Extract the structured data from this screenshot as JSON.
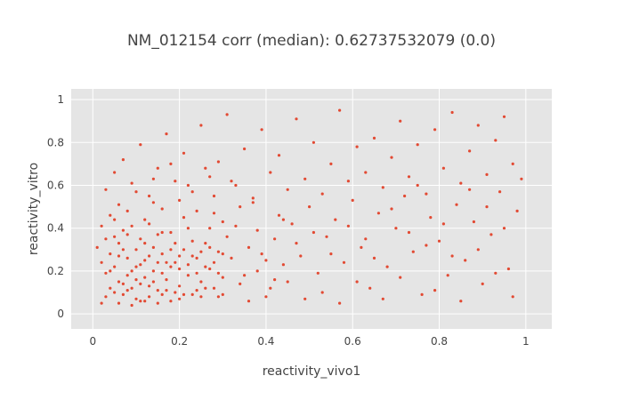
{
  "chart_data": {
    "type": "scatter",
    "title": "NM_012154 corr (median): 0.62737532079 (0.0)",
    "xlabel": "reactivity_vivo1",
    "ylabel": "reactivity_vitro",
    "xlim": [
      -0.05,
      1.06
    ],
    "ylim": [
      -0.07,
      1.05
    ],
    "x_ticks": [
      "0",
      "0.2",
      "0.4",
      "0.6",
      "0.8",
      "1"
    ],
    "y_ticks": [
      "0",
      "0.2",
      "0.4",
      "0.6",
      "0.8",
      "1"
    ],
    "grid": true,
    "legend": "none",
    "marker_color": "#e24a33",
    "plot_background": "#e5e5e5",
    "series": [
      {
        "points": [
          [
            0.02,
            0.05
          ],
          [
            0.03,
            0.08
          ],
          [
            0.04,
            0.12
          ],
          [
            0.05,
            0.1
          ],
          [
            0.06,
            0.15
          ],
          [
            0.07,
            0.09
          ],
          [
            0.08,
            0.18
          ],
          [
            0.09,
            0.12
          ],
          [
            0.1,
            0.22
          ],
          [
            0.11,
            0.14
          ],
          [
            0.12,
            0.25
          ],
          [
            0.13,
            0.08
          ],
          [
            0.14,
            0.2
          ],
          [
            0.15,
            0.11
          ],
          [
            0.16,
            0.28
          ],
          [
            0.17,
            0.16
          ],
          [
            0.18,
            0.06
          ],
          [
            0.19,
            0.24
          ],
          [
            0.2,
            0.13
          ],
          [
            0.21,
            0.3
          ],
          [
            0.22,
            0.18
          ],
          [
            0.23,
            0.09
          ],
          [
            0.24,
            0.26
          ],
          [
            0.25,
            0.15
          ],
          [
            0.26,
            0.33
          ],
          [
            0.27,
            0.21
          ],
          [
            0.28,
            0.12
          ],
          [
            0.29,
            0.29
          ],
          [
            0.3,
            0.17
          ],
          [
            0.31,
            0.36
          ],
          [
            0.05,
            0.22
          ],
          [
            0.07,
            0.3
          ],
          [
            0.09,
            0.04
          ],
          [
            0.11,
            0.35
          ],
          [
            0.13,
            0.42
          ],
          [
            0.15,
            0.05
          ],
          [
            0.04,
            0.28
          ],
          [
            0.06,
            0.33
          ],
          [
            0.08,
            0.26
          ],
          [
            0.1,
            0.07
          ],
          [
            0.12,
            0.17
          ],
          [
            0.14,
            0.31
          ],
          [
            0.16,
            0.09
          ],
          [
            0.18,
            0.38
          ],
          [
            0.2,
            0.21
          ],
          [
            0.03,
            0.19
          ],
          [
            0.05,
            0.36
          ],
          [
            0.07,
            0.14
          ],
          [
            0.09,
            0.41
          ],
          [
            0.11,
            0.23
          ],
          [
            0.13,
            0.13
          ],
          [
            0.15,
            0.37
          ],
          [
            0.17,
            0.24
          ],
          [
            0.19,
            0.1
          ],
          [
            0.21,
            0.45
          ],
          [
            0.23,
            0.27
          ],
          [
            0.25,
            0.08
          ],
          [
            0.27,
            0.4
          ],
          [
            0.29,
            0.19
          ],
          [
            0.02,
            0.24
          ],
          [
            0.06,
            0.05
          ],
          [
            0.08,
            0.48
          ],
          [
            0.1,
            0.3
          ],
          [
            0.12,
            0.06
          ],
          [
            0.14,
            0.52
          ],
          [
            0.16,
            0.19
          ],
          [
            0.18,
            0.3
          ],
          [
            0.2,
            0.07
          ],
          [
            0.22,
            0.4
          ],
          [
            0.24,
            0.11
          ],
          [
            0.26,
            0.22
          ],
          [
            0.28,
            0.47
          ],
          [
            0.3,
            0.09
          ],
          [
            0.32,
            0.26
          ],
          [
            0.34,
            0.14
          ],
          [
            0.36,
            0.31
          ],
          [
            0.38,
            0.2
          ],
          [
            0.4,
            0.08
          ],
          [
            0.42,
            0.35
          ],
          [
            0.44,
            0.23
          ],
          [
            0.33,
            0.41
          ],
          [
            0.35,
            0.18
          ],
          [
            0.37,
            0.52
          ],
          [
            0.39,
            0.28
          ],
          [
            0.41,
            0.12
          ],
          [
            0.43,
            0.46
          ],
          [
            0.45,
            0.15
          ],
          [
            0.47,
            0.33
          ],
          [
            0.49,
            0.07
          ],
          [
            0.51,
            0.38
          ],
          [
            0.03,
            0.58
          ],
          [
            0.05,
            0.66
          ],
          [
            0.07,
            0.72
          ],
          [
            0.09,
            0.61
          ],
          [
            0.11,
            0.79
          ],
          [
            0.13,
            0.55
          ],
          [
            0.15,
            0.68
          ],
          [
            0.17,
            0.84
          ],
          [
            0.19,
            0.62
          ],
          [
            0.21,
            0.75
          ],
          [
            0.23,
            0.57
          ],
          [
            0.25,
            0.88
          ],
          [
            0.27,
            0.64
          ],
          [
            0.29,
            0.71
          ],
          [
            0.31,
            0.93
          ],
          [
            0.33,
            0.6
          ],
          [
            0.35,
            0.77
          ],
          [
            0.37,
            0.54
          ],
          [
            0.39,
            0.86
          ],
          [
            0.41,
            0.66
          ],
          [
            0.43,
            0.74
          ],
          [
            0.45,
            0.58
          ],
          [
            0.47,
            0.91
          ],
          [
            0.49,
            0.63
          ],
          [
            0.51,
            0.8
          ],
          [
            0.53,
            0.56
          ],
          [
            0.55,
            0.7
          ],
          [
            0.57,
            0.95
          ],
          [
            0.59,
            0.62
          ],
          [
            0.61,
            0.78
          ],
          [
            0.46,
            0.42
          ],
          [
            0.48,
            0.27
          ],
          [
            0.5,
            0.5
          ],
          [
            0.52,
            0.19
          ],
          [
            0.54,
            0.36
          ],
          [
            0.56,
            0.44
          ],
          [
            0.58,
            0.24
          ],
          [
            0.6,
            0.53
          ],
          [
            0.62,
            0.31
          ],
          [
            0.64,
            0.12
          ],
          [
            0.66,
            0.47
          ],
          [
            0.68,
            0.22
          ],
          [
            0.7,
            0.4
          ],
          [
            0.72,
            0.55
          ],
          [
            0.74,
            0.29
          ],
          [
            0.76,
            0.09
          ],
          [
            0.78,
            0.45
          ],
          [
            0.8,
            0.34
          ],
          [
            0.82,
            0.18
          ],
          [
            0.84,
            0.51
          ],
          [
            0.86,
            0.25
          ],
          [
            0.88,
            0.43
          ],
          [
            0.9,
            0.14
          ],
          [
            0.92,
            0.37
          ],
          [
            0.94,
            0.57
          ],
          [
            0.96,
            0.21
          ],
          [
            0.98,
            0.48
          ],
          [
            0.63,
            0.66
          ],
          [
            0.65,
            0.82
          ],
          [
            0.67,
            0.59
          ],
          [
            0.69,
            0.73
          ],
          [
            0.71,
            0.9
          ],
          [
            0.73,
            0.64
          ],
          [
            0.75,
            0.79
          ],
          [
            0.77,
            0.56
          ],
          [
            0.79,
            0.86
          ],
          [
            0.81,
            0.68
          ],
          [
            0.83,
            0.94
          ],
          [
            0.85,
            0.61
          ],
          [
            0.87,
            0.76
          ],
          [
            0.89,
            0.88
          ],
          [
            0.91,
            0.65
          ],
          [
            0.93,
            0.81
          ],
          [
            0.95,
            0.92
          ],
          [
            0.97,
            0.7
          ],
          [
            0.36,
            0.06
          ],
          [
            0.38,
            0.39
          ],
          [
            0.4,
            0.25
          ],
          [
            0.42,
            0.16
          ],
          [
            0.44,
            0.44
          ],
          [
            0.53,
            0.1
          ],
          [
            0.55,
            0.28
          ],
          [
            0.57,
            0.05
          ],
          [
            0.59,
            0.41
          ],
          [
            0.61,
            0.15
          ],
          [
            0.63,
            0.35
          ],
          [
            0.65,
            0.26
          ],
          [
            0.67,
            0.07
          ],
          [
            0.69,
            0.49
          ],
          [
            0.71,
            0.17
          ],
          [
            0.73,
            0.38
          ],
          [
            0.75,
            0.6
          ],
          [
            0.77,
            0.32
          ],
          [
            0.79,
            0.11
          ],
          [
            0.81,
            0.42
          ],
          [
            0.83,
            0.27
          ],
          [
            0.85,
            0.06
          ],
          [
            0.87,
            0.58
          ],
          [
            0.89,
            0.3
          ],
          [
            0.91,
            0.5
          ],
          [
            0.93,
            0.19
          ],
          [
            0.95,
            0.4
          ],
          [
            0.97,
            0.08
          ],
          [
            0.99,
            0.63
          ],
          [
            0.04,
            0.46
          ],
          [
            0.06,
            0.51
          ],
          [
            0.08,
            0.37
          ],
          [
            0.1,
            0.57
          ],
          [
            0.12,
            0.44
          ],
          [
            0.14,
            0.63
          ],
          [
            0.16,
            0.49
          ],
          [
            0.18,
            0.7
          ],
          [
            0.2,
            0.53
          ],
          [
            0.22,
            0.6
          ],
          [
            0.24,
            0.48
          ],
          [
            0.26,
            0.68
          ],
          [
            0.28,
            0.55
          ],
          [
            0.3,
            0.43
          ],
          [
            0.32,
            0.62
          ],
          [
            0.34,
            0.5
          ],
          [
            0.01,
            0.31
          ],
          [
            0.02,
            0.41
          ],
          [
            0.03,
            0.35
          ],
          [
            0.04,
            0.2
          ],
          [
            0.05,
            0.44
          ],
          [
            0.06,
            0.27
          ],
          [
            0.07,
            0.39
          ],
          [
            0.08,
            0.11
          ],
          [
            0.09,
            0.2
          ],
          [
            0.1,
            0.16
          ],
          [
            0.11,
            0.06
          ],
          [
            0.12,
            0.33
          ],
          [
            0.13,
            0.27
          ],
          [
            0.14,
            0.15
          ],
          [
            0.15,
            0.24
          ],
          [
            0.16,
            0.38
          ],
          [
            0.17,
            0.11
          ],
          [
            0.18,
            0.22
          ],
          [
            0.19,
            0.33
          ],
          [
            0.2,
            0.27
          ],
          [
            0.21,
            0.09
          ],
          [
            0.22,
            0.23
          ],
          [
            0.23,
            0.34
          ],
          [
            0.24,
            0.19
          ],
          [
            0.25,
            0.29
          ],
          [
            0.26,
            0.12
          ],
          [
            0.27,
            0.31
          ],
          [
            0.28,
            0.24
          ],
          [
            0.29,
            0.08
          ],
          [
            0.3,
            0.28
          ]
        ]
      }
    ]
  }
}
